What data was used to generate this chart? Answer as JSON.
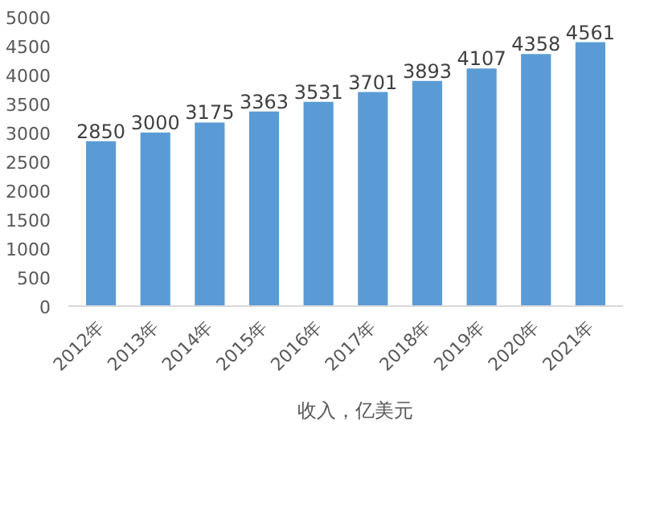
{
  "chart_data": {
    "type": "bar",
    "categories": [
      "2012年",
      "2013年",
      "2014年",
      "2015年",
      "2016年",
      "2017年",
      "2018年",
      "2019年",
      "2020年",
      "2021年"
    ],
    "series": [
      {
        "name": "收入，亿美元",
        "color": "#5b9bd5",
        "values": [
          2850,
          3000,
          3175,
          3363,
          3531,
          3701,
          3893,
          4107,
          4358,
          4561
        ]
      }
    ],
    "ylim": [
      0,
      5000
    ],
    "yticks": [
      0,
      500,
      1000,
      1500,
      2000,
      2500,
      3000,
      3500,
      4000,
      4500,
      5000
    ],
    "data_labels": true,
    "legend": "bottom"
  }
}
